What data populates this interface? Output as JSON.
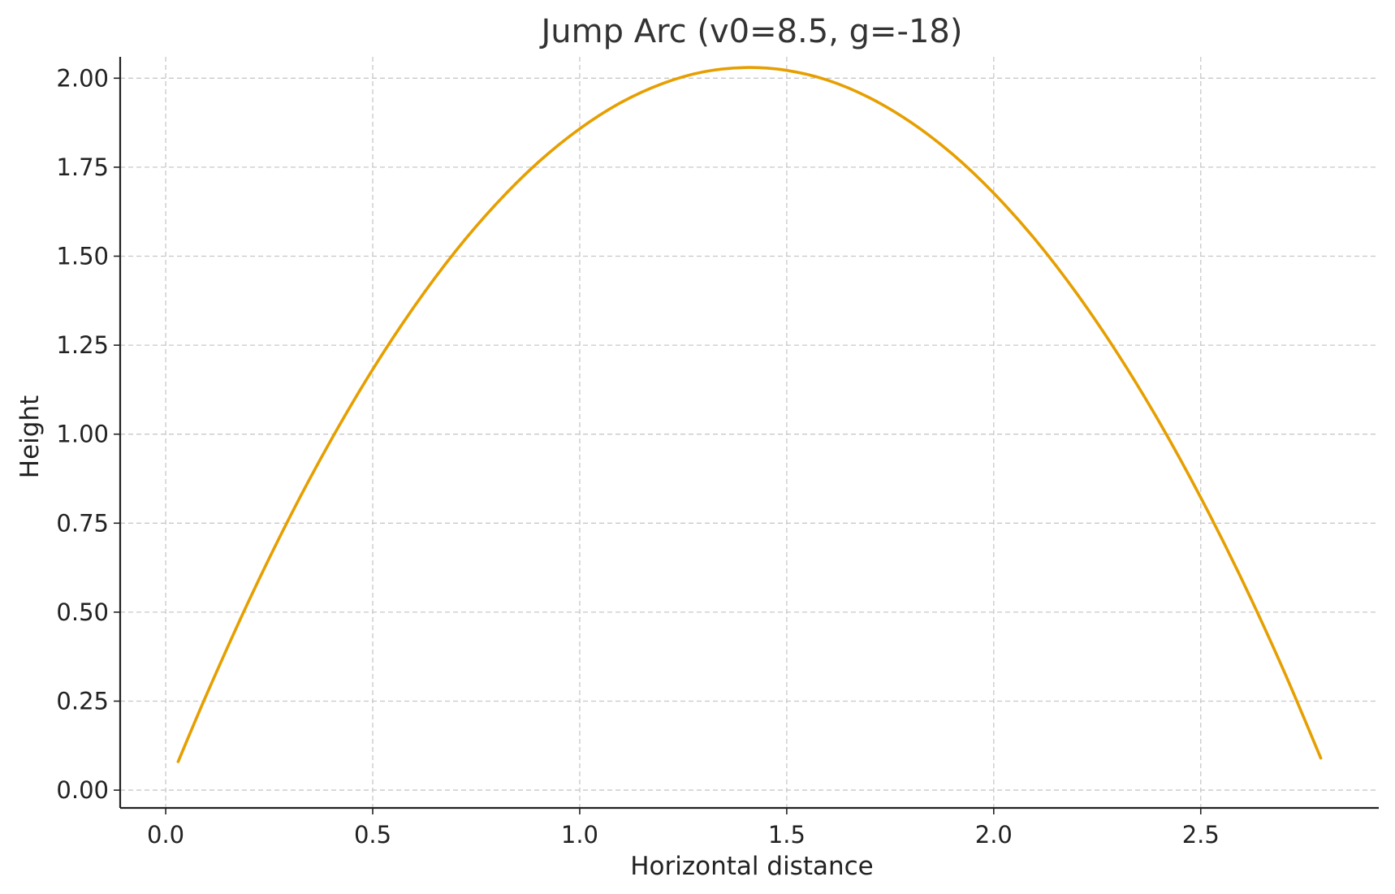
{
  "chart_data": {
    "type": "line",
    "title": "Jump Arc (v0=8.5, g=-18)",
    "xlabel": "Horizontal distance",
    "ylabel": "Height",
    "xlim": [
      -0.11,
      2.93
    ],
    "ylim": [
      -0.05,
      2.06
    ],
    "xticks": [
      0.0,
      0.5,
      1.0,
      1.5,
      2.0,
      2.5
    ],
    "xtick_labels": [
      "0.0",
      "0.5",
      "1.0",
      "1.5",
      "2.0",
      "2.5"
    ],
    "yticks": [
      0.0,
      0.25,
      0.5,
      0.75,
      1.0,
      1.25,
      1.5,
      1.75,
      2.0
    ],
    "ytick_labels": [
      "0.00",
      "0.25",
      "0.50",
      "0.75",
      "1.00",
      "1.25",
      "1.50",
      "1.75",
      "2.00"
    ],
    "grid": true,
    "series": [
      {
        "color": "#E69F00",
        "x": [
          0.03,
          0.1,
          0.2,
          0.3,
          0.4,
          0.5,
          0.6,
          0.7,
          0.8,
          0.9,
          1.0,
          1.1,
          1.2,
          1.3,
          1.4,
          1.5,
          1.6,
          1.7,
          1.8,
          1.9,
          2.0,
          2.1,
          2.2,
          2.3,
          2.4,
          2.5,
          2.6,
          2.7,
          2.79
        ],
        "y": [
          0.08,
          0.272,
          0.53,
          0.768,
          0.985,
          1.182,
          1.358,
          1.514,
          1.649,
          1.764,
          1.858,
          1.932,
          1.985,
          2.018,
          2.03,
          2.022,
          1.994,
          1.945,
          1.876,
          1.787,
          1.677,
          1.547,
          1.396,
          1.225,
          1.034,
          0.822,
          0.59,
          0.337,
          0.09
        ]
      }
    ]
  }
}
